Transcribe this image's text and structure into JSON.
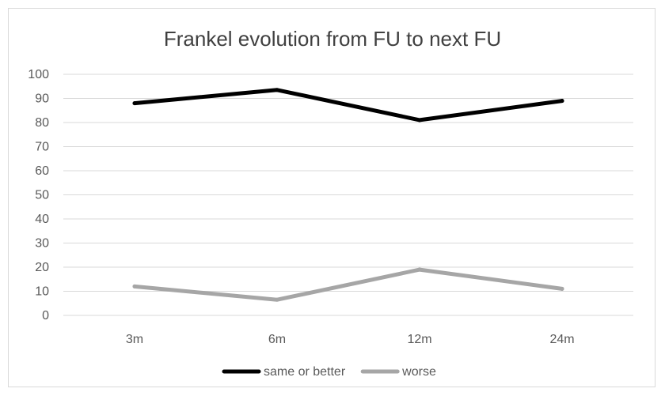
{
  "chart_data": {
    "type": "line",
    "title": "Frankel evolution from FU to next FU",
    "xlabel": "",
    "ylabel": "",
    "categories": [
      "3m",
      "6m",
      "12m",
      "24m"
    ],
    "ylim": [
      0,
      100
    ],
    "yticks": [
      0,
      10,
      20,
      30,
      40,
      50,
      60,
      70,
      80,
      90,
      100
    ],
    "grid": true,
    "legend_position": "bottom",
    "series": [
      {
        "name": "same or better",
        "values": [
          88,
          93.5,
          81,
          89
        ],
        "color": "#000000"
      },
      {
        "name": "worse",
        "values": [
          12,
          6.5,
          19,
          11
        ],
        "color": "#a6a6a6"
      }
    ]
  }
}
